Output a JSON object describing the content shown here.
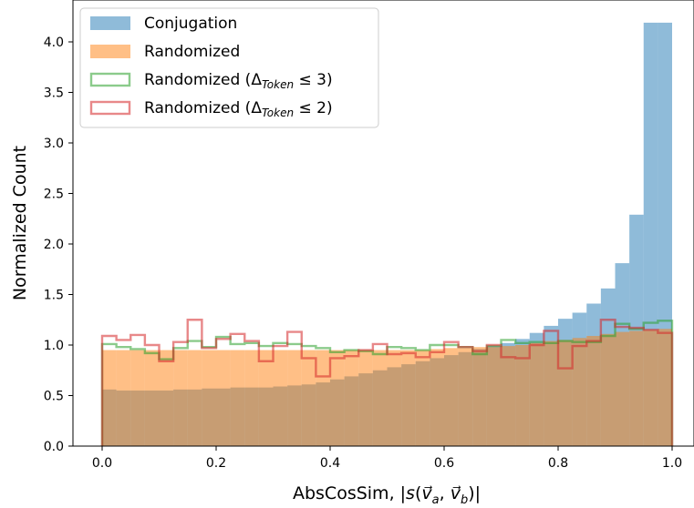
{
  "chart_data": {
    "type": "histogram",
    "xlabel": "AbsCosSim, |s(v⃗a, v⃗b)|",
    "ylabel": "Normalized Count",
    "xlim": [
      -0.05,
      1.05
    ],
    "ylim": [
      0,
      4.2
    ],
    "grid": false,
    "legend_position": "top-left",
    "bin_width": 0.025,
    "x_ticks": [
      "0.0",
      "0.2",
      "0.4",
      "0.6",
      "0.8",
      "1.0"
    ],
    "y_ticks": [
      "0.0",
      "0.5",
      "1.0",
      "1.5",
      "2.0",
      "2.5",
      "3.0",
      "3.5",
      "4.0"
    ],
    "bins_start": [
      0.0,
      0.025,
      0.05,
      0.075,
      0.1,
      0.125,
      0.15,
      0.175,
      0.2,
      0.225,
      0.25,
      0.275,
      0.3,
      0.325,
      0.35,
      0.375,
      0.4,
      0.425,
      0.45,
      0.475,
      0.5,
      0.525,
      0.55,
      0.575,
      0.6,
      0.625,
      0.65,
      0.675,
      0.7,
      0.725,
      0.75,
      0.775,
      0.8,
      0.825,
      0.85,
      0.875,
      0.9,
      0.925,
      0.95,
      0.975
    ],
    "series": [
      {
        "name": "Conjugation",
        "style": "filled",
        "color": "#1f77b4",
        "opacity": 0.5,
        "values": [
          0.56,
          0.55,
          0.55,
          0.55,
          0.55,
          0.56,
          0.56,
          0.57,
          0.57,
          0.58,
          0.58,
          0.58,
          0.59,
          0.6,
          0.61,
          0.63,
          0.66,
          0.69,
          0.72,
          0.75,
          0.78,
          0.81,
          0.84,
          0.87,
          0.9,
          0.93,
          0.96,
          0.99,
          1.02,
          1.06,
          1.12,
          1.19,
          1.26,
          1.32,
          1.41,
          1.56,
          1.81,
          2.29,
          4.19,
          4.19
        ]
      },
      {
        "name": "Randomized",
        "style": "filled",
        "color": "#ff7f0e",
        "opacity": 0.5,
        "values": [
          0.95,
          0.95,
          0.95,
          0.95,
          0.95,
          0.95,
          0.95,
          0.95,
          0.95,
          0.95,
          0.95,
          0.95,
          0.95,
          0.95,
          0.95,
          0.95,
          0.95,
          0.95,
          0.95,
          0.95,
          0.95,
          0.95,
          0.95,
          0.96,
          0.97,
          0.97,
          0.98,
          0.98,
          0.99,
          1.0,
          1.02,
          1.04,
          1.05,
          1.07,
          1.09,
          1.11,
          1.13,
          1.14,
          1.15,
          1.16
        ]
      },
      {
        "name": "Randomized (Δ_Token ≤ 3)",
        "style": "step",
        "color": "#2ca02c",
        "opacity": 0.5,
        "values": [
          1.01,
          0.98,
          0.96,
          0.92,
          0.86,
          0.97,
          1.04,
          0.98,
          1.08,
          1.01,
          1.02,
          0.99,
          1.02,
          1.01,
          0.99,
          0.97,
          0.93,
          0.95,
          0.94,
          0.91,
          0.98,
          0.97,
          0.95,
          1.0,
          1.0,
          0.98,
          0.91,
          0.99,
          1.05,
          1.02,
          1.03,
          1.02,
          1.04,
          1.03,
          1.03,
          1.09,
          1.21,
          1.16,
          1.22,
          1.24
        ]
      },
      {
        "name": "Randomized (Δ_Token ≤ 2)",
        "style": "step",
        "color": "#d62728",
        "opacity": 0.5,
        "values": [
          1.09,
          1.05,
          1.1,
          1.0,
          0.84,
          1.03,
          1.25,
          0.97,
          1.06,
          1.11,
          1.04,
          0.84,
          0.99,
          1.13,
          0.87,
          0.69,
          0.87,
          0.89,
          0.95,
          1.01,
          0.91,
          0.92,
          0.88,
          0.93,
          1.03,
          0.98,
          0.94,
          1.0,
          0.88,
          0.87,
          1.0,
          1.14,
          0.77,
          0.99,
          1.04,
          1.25,
          1.18,
          1.17,
          1.15,
          1.12
        ]
      }
    ],
    "legend": [
      {
        "main": "Conjugation",
        "sub": "",
        "tail": ""
      },
      {
        "main": "Randomized",
        "sub": "",
        "tail": ""
      },
      {
        "main": "Randomized (Δ",
        "sub": "Token",
        "tail": " ≤ 3)"
      },
      {
        "main": "Randomized (Δ",
        "sub": "Token",
        "tail": " ≤ 2)"
      }
    ]
  }
}
